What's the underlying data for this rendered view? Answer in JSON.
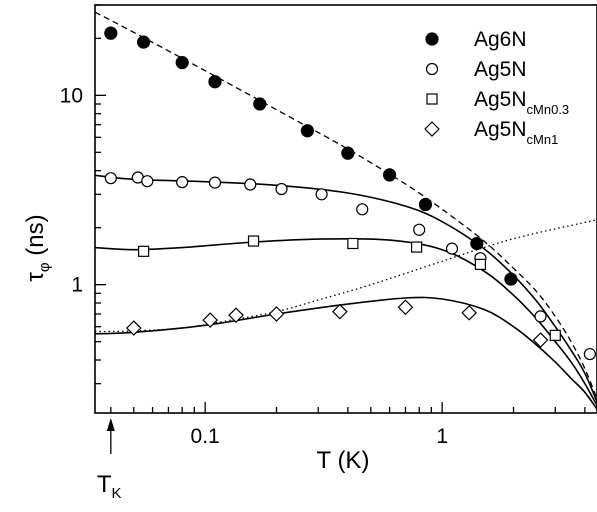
{
  "chart_data": {
    "type": "scatter",
    "xlabel": "T (K)",
    "ylabel_main": "τ",
    "ylabel_sub": "φ",
    "ylabel_unit": " (ns)",
    "x_scale": "log",
    "y_scale": "log",
    "xlim": [
      0.0343,
      4.5
    ],
    "ylim": [
      0.21,
      30
    ],
    "x_ticks": [
      {
        "value": 0.1,
        "label": "0.1"
      },
      {
        "value": 1,
        "label": "1"
      }
    ],
    "y_ticks": [
      {
        "value": 1,
        "label": "1"
      },
      {
        "value": 10,
        "label": "10"
      }
    ],
    "grid": false,
    "legend_position": "top-right",
    "annotation": {
      "main": "T",
      "sub": "K",
      "x": 0.04
    },
    "series": [
      {
        "name": "Ag6N",
        "name_main": "Ag6N",
        "name_sub": "",
        "marker": "filled-circle",
        "points": [
          [
            0.04,
            21.3
          ],
          [
            0.055,
            19.1
          ],
          [
            0.08,
            14.9
          ],
          [
            0.11,
            11.8
          ],
          [
            0.17,
            9.0
          ],
          [
            0.27,
            6.5
          ],
          [
            0.4,
            4.95
          ],
          [
            0.6,
            3.8
          ],
          [
            0.85,
            2.65
          ],
          [
            1.4,
            1.65
          ],
          [
            1.95,
            1.07
          ]
        ],
        "fit": [
          [
            0.0343,
            27.5
          ],
          [
            0.05,
            21.5
          ],
          [
            0.1,
            13.5
          ],
          [
            0.2,
            8.4
          ],
          [
            0.4,
            5.2
          ],
          [
            0.7,
            3.4
          ],
          [
            1.0,
            2.5
          ],
          [
            1.5,
            1.7
          ],
          [
            2.0,
            1.22
          ],
          [
            2.5,
            0.92
          ],
          [
            3.0,
            0.68
          ],
          [
            3.5,
            0.5
          ],
          [
            4.0,
            0.36
          ],
          [
            4.5,
            0.25
          ]
        ]
      },
      {
        "name": "Ag5N",
        "name_main": "Ag5N",
        "name_sub": "",
        "marker": "open-circle",
        "points": [
          [
            0.04,
            3.65
          ],
          [
            0.052,
            3.68
          ],
          [
            0.057,
            3.52
          ],
          [
            0.08,
            3.48
          ],
          [
            0.11,
            3.46
          ],
          [
            0.155,
            3.38
          ],
          [
            0.21,
            3.2
          ],
          [
            0.31,
            3.0
          ],
          [
            0.46,
            2.5
          ],
          [
            0.8,
            1.95
          ],
          [
            1.1,
            1.55
          ],
          [
            1.45,
            1.38
          ],
          [
            2.6,
            0.68
          ],
          [
            4.2,
            0.43
          ]
        ]
      },
      {
        "name": "Ag5NcMn0.3",
        "name_main": "Ag5N",
        "name_sub": "cMn0.3",
        "marker": "open-square",
        "points": [
          [
            0.055,
            1.5
          ],
          [
            0.16,
            1.7
          ],
          [
            0.42,
            1.65
          ],
          [
            0.78,
            1.58
          ],
          [
            1.45,
            1.28
          ],
          [
            3.0,
            0.54
          ]
        ]
      },
      {
        "name": "Ag5NcMn1",
        "name_main": "Ag5N",
        "name_sub": "cMn1",
        "marker": "open-diamond",
        "points": [
          [
            0.05,
            0.59
          ],
          [
            0.105,
            0.65
          ],
          [
            0.135,
            0.69
          ],
          [
            0.2,
            0.7
          ],
          [
            0.37,
            0.72
          ],
          [
            0.7,
            0.76
          ],
          [
            1.3,
            0.71
          ],
          [
            2.6,
            0.51
          ]
        ]
      }
    ],
    "fit_curves": [
      [
        [
          0.0343,
          3.78
        ],
        [
          0.05,
          3.6
        ],
        [
          0.1,
          3.5
        ],
        [
          0.2,
          3.35
        ],
        [
          0.4,
          3.05
        ],
        [
          0.7,
          2.6
        ],
        [
          1.0,
          2.15
        ],
        [
          1.5,
          1.55
        ],
        [
          2.0,
          1.12
        ],
        [
          2.5,
          0.82
        ],
        [
          3.0,
          0.6
        ],
        [
          3.5,
          0.45
        ],
        [
          4.0,
          0.34
        ],
        [
          4.5,
          0.24
        ]
      ],
      [
        [
          0.0343,
          1.57
        ],
        [
          0.05,
          1.53
        ],
        [
          0.08,
          1.57
        ],
        [
          0.15,
          1.67
        ],
        [
          0.3,
          1.74
        ],
        [
          0.6,
          1.72
        ],
        [
          1.0,
          1.53
        ],
        [
          1.5,
          1.18
        ],
        [
          2.0,
          0.88
        ],
        [
          2.5,
          0.66
        ],
        [
          3.0,
          0.5
        ],
        [
          3.5,
          0.39
        ],
        [
          4.0,
          0.3
        ],
        [
          4.5,
          0.23
        ]
      ],
      [
        [
          0.0343,
          0.55
        ],
        [
          0.05,
          0.56
        ],
        [
          0.1,
          0.61
        ],
        [
          0.2,
          0.7
        ],
        [
          0.4,
          0.79
        ],
        [
          0.7,
          0.85
        ],
        [
          1.0,
          0.84
        ],
        [
          1.5,
          0.74
        ],
        [
          2.0,
          0.6
        ],
        [
          2.5,
          0.48
        ],
        [
          3.0,
          0.39
        ],
        [
          3.5,
          0.32
        ],
        [
          4.0,
          0.27
        ],
        [
          4.5,
          0.22
        ]
      ]
    ],
    "dotted_curve": [
      [
        0.0343,
        0.565
      ],
      [
        0.05,
        0.57
      ],
      [
        0.08,
        0.59
      ],
      [
        0.12,
        0.64
      ],
      [
        0.2,
        0.72
      ],
      [
        0.3,
        0.83
      ],
      [
        0.5,
        1.0
      ],
      [
        1.0,
        1.33
      ],
      [
        2.0,
        1.75
      ],
      [
        4.5,
        2.2
      ]
    ]
  }
}
